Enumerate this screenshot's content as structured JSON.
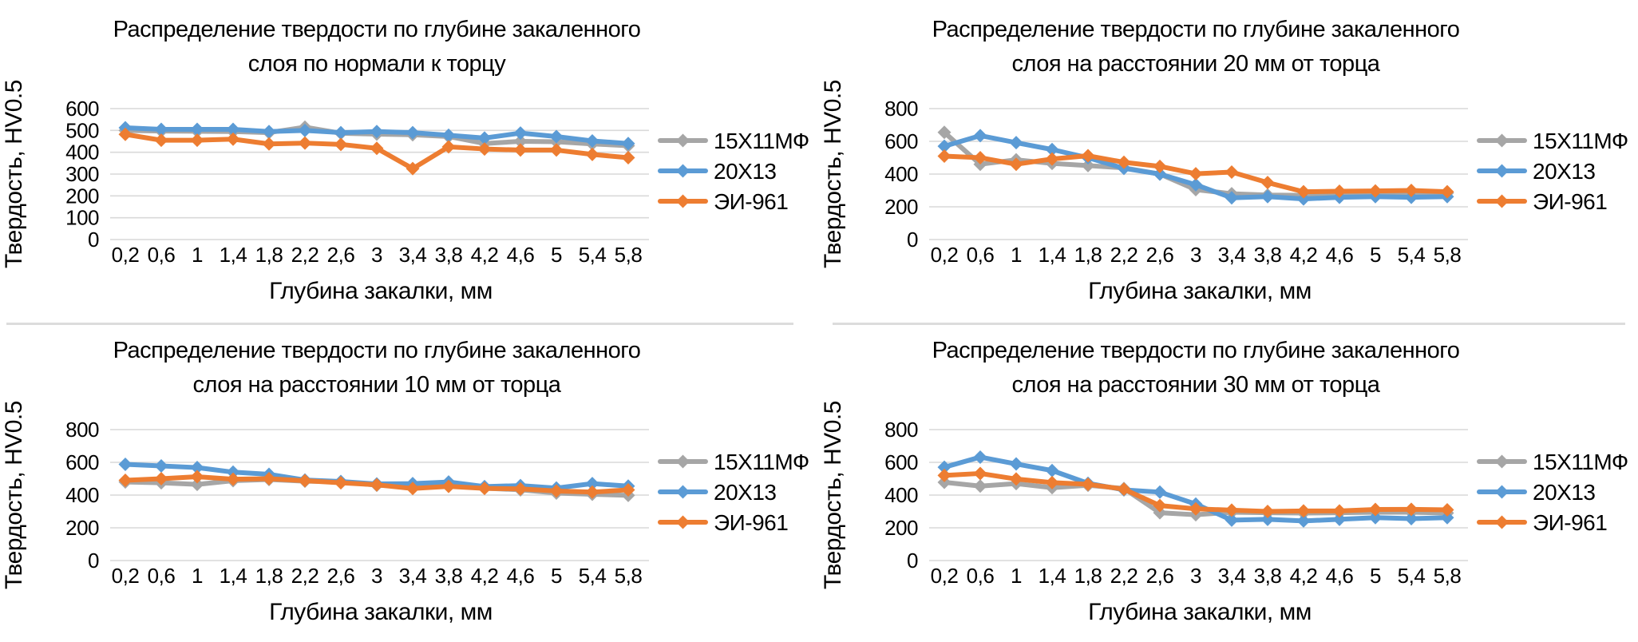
{
  "page": {
    "background": "#ffffff",
    "divider_color": "#DCDCDC",
    "grid_color": "#D9D9D9",
    "text_color": "#000000"
  },
  "chart_data": [
    {
      "type": "line",
      "position": "top-left",
      "title": "Распределение твердости по глубине закаленного слоя по нормали к торцу",
      "title_lines": [
        "Распределение твердости по глубине закаленного",
        "слоя по нормали к торцу"
      ],
      "xlabel": "Глубина закалки, мм",
      "ylabel": "Твердость, HV0.5",
      "ylim": [
        0,
        600
      ],
      "ytick_step": 100,
      "grid": true,
      "legend_position": "right",
      "categories": [
        "0,2",
        "0,6",
        "1",
        "1,4",
        "1,8",
        "2,2",
        "2,6",
        "3",
        "3,4",
        "3,8",
        "4,2",
        "4,6",
        "5",
        "5,4",
        "5,8"
      ],
      "series": [
        {
          "name": "15Х11МФ",
          "color": "#A6A6A6",
          "values": [
            500,
            497,
            496,
            495,
            490,
            515,
            487,
            483,
            480,
            472,
            440,
            450,
            448,
            438,
            430
          ]
        },
        {
          "name": "20Х13",
          "color": "#5B9BD5",
          "values": [
            512,
            505,
            505,
            505,
            495,
            500,
            490,
            495,
            490,
            478,
            465,
            488,
            472,
            452,
            440
          ]
        },
        {
          "name": "ЭИ-961",
          "color": "#ED7D31",
          "values": [
            482,
            455,
            455,
            460,
            438,
            442,
            436,
            418,
            325,
            425,
            415,
            410,
            410,
            390,
            375
          ]
        }
      ]
    },
    {
      "type": "line",
      "position": "top-right",
      "title": "Распределение твердости по глубине закаленного слоя на расстоянии 20 мм от торца",
      "title_lines": [
        "Распределение твердости по глубине закаленного",
        "слоя на расстоянии 20 мм от торца"
      ],
      "xlabel": "Глубина закалки, мм",
      "ylabel": "Твердость, HV0.5",
      "ylim": [
        0,
        800
      ],
      "ytick_step": 200,
      "grid": true,
      "legend_position": "right",
      "categories": [
        "0,2",
        "0,6",
        "1",
        "1,4",
        "1,8",
        "2,2",
        "2,6",
        "3",
        "3,4",
        "3,8",
        "4,2",
        "4,6",
        "5",
        "5,4",
        "5,8"
      ],
      "series": [
        {
          "name": "15Х11МФ",
          "color": "#A6A6A6",
          "values": [
            655,
            460,
            487,
            465,
            452,
            438,
            400,
            305,
            280,
            272,
            270,
            273,
            278,
            282,
            285
          ]
        },
        {
          "name": "20Х13",
          "color": "#5B9BD5",
          "values": [
            570,
            635,
            592,
            550,
            500,
            435,
            400,
            335,
            255,
            262,
            248,
            258,
            262,
            258,
            262
          ]
        },
        {
          "name": "ЭИ-961",
          "color": "#ED7D31",
          "values": [
            510,
            500,
            460,
            492,
            512,
            472,
            447,
            402,
            412,
            348,
            292,
            295,
            297,
            300,
            292
          ]
        }
      ]
    },
    {
      "type": "line",
      "position": "bottom-left",
      "title": "Распределение твердости по глубине закаленного слоя на расстоянии 10 мм от торца",
      "title_lines": [
        "Распределение твердости по глубине закаленного",
        "слоя на расстоянии 10 мм от торца"
      ],
      "xlabel": "Глубина закалки, мм",
      "ylabel": "Твердость, HV0.5",
      "ylim": [
        0,
        800
      ],
      "ytick_step": 200,
      "grid": true,
      "legend_position": "right",
      "categories": [
        "0,2",
        "0,6",
        "1",
        "1,4",
        "1,8",
        "2,2",
        "2,6",
        "3",
        "3,4",
        "3,8",
        "4,2",
        "4,6",
        "5",
        "5,4",
        "5,8"
      ],
      "series": [
        {
          "name": "15Х11МФ",
          "color": "#A6A6A6",
          "values": [
            480,
            475,
            465,
            488,
            495,
            485,
            482,
            460,
            452,
            462,
            442,
            432,
            412,
            405,
            398
          ]
        },
        {
          "name": "20Х13",
          "color": "#5B9BD5",
          "values": [
            588,
            578,
            568,
            540,
            527,
            492,
            483,
            468,
            470,
            480,
            452,
            458,
            443,
            470,
            455
          ]
        },
        {
          "name": "ЭИ-961",
          "color": "#ED7D31",
          "values": [
            490,
            500,
            512,
            497,
            500,
            488,
            475,
            463,
            440,
            453,
            441,
            438,
            425,
            418,
            432
          ]
        }
      ]
    },
    {
      "type": "line",
      "position": "bottom-right",
      "title": "Распределение твердости по глубине закаленного слоя на расстоянии 30 мм от торца",
      "title_lines": [
        "Распределение твердости по глубине закаленного",
        "слоя на расстоянии 30 мм от торца"
      ],
      "xlabel": "Глубина закалки, мм",
      "ylabel": "Твердость, HV0.5",
      "ylim": [
        0,
        800
      ],
      "ytick_step": 200,
      "grid": true,
      "legend_position": "right",
      "categories": [
        "0,2",
        "0,6",
        "1",
        "1,4",
        "1,8",
        "2,2",
        "2,6",
        "3",
        "3,4",
        "3,8",
        "4,2",
        "4,6",
        "5",
        "5,4",
        "5,8"
      ],
      "series": [
        {
          "name": "15Х11МФ",
          "color": "#A6A6A6",
          "values": [
            478,
            455,
            470,
            445,
            460,
            440,
            292,
            280,
            295,
            292,
            290,
            292,
            295,
            295,
            290
          ]
        },
        {
          "name": "20Х13",
          "color": "#5B9BD5",
          "values": [
            570,
            632,
            590,
            550,
            472,
            432,
            418,
            345,
            247,
            252,
            242,
            252,
            262,
            256,
            262
          ]
        },
        {
          "name": "ЭИ-961",
          "color": "#ED7D31",
          "values": [
            520,
            532,
            498,
            476,
            466,
            436,
            336,
            316,
            308,
            300,
            303,
            303,
            312,
            313,
            310
          ]
        }
      ]
    }
  ]
}
